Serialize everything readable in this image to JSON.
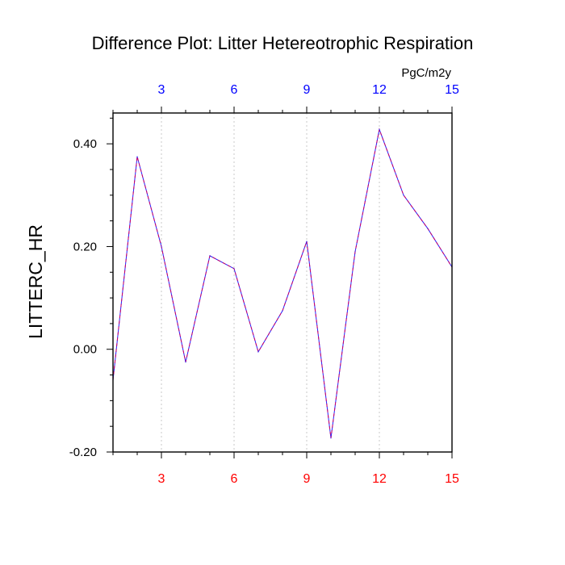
{
  "chart_data": {
    "type": "line",
    "title": "Difference Plot: Litter Hetereotrophic Respiration",
    "units": "PgC/m2y",
    "ylabel": "LITTERC_HR",
    "xlabel": "",
    "xlim": [
      1,
      15
    ],
    "ylim": [
      -0.2,
      0.46
    ],
    "x_ticks": [
      3,
      6,
      9,
      12,
      15
    ],
    "x_tick_labels_top": [
      "3",
      "6",
      "9",
      "12",
      "15"
    ],
    "x_tick_labels_bottom": [
      "3",
      "6",
      "9",
      "12",
      "15"
    ],
    "y_ticks": [
      0.4,
      0.2,
      0.0,
      -0.2
    ],
    "y_tick_labels": [
      "0.40",
      "0.20",
      "0.00",
      "-0.20"
    ],
    "grid": "vertical dotted at x ticks",
    "series": [
      {
        "x": [
          1,
          2,
          3,
          4,
          5,
          6,
          7,
          8,
          9,
          10,
          11,
          12,
          13,
          14,
          15
        ],
        "values": [
          -0.06,
          0.375,
          0.2,
          -0.025,
          0.182,
          0.157,
          -0.005,
          0.075,
          0.21,
          -0.173,
          0.19,
          0.428,
          0.3,
          0.235,
          0.16
        ]
      }
    ],
    "colors": {
      "line_primary": "#2222ff",
      "line_secondary": "#cc0066",
      "top_axis_labels": "#0000ff",
      "bottom_axis_labels": "#ff0000",
      "grid": "#c8c8c8",
      "axis": "#000000"
    }
  }
}
